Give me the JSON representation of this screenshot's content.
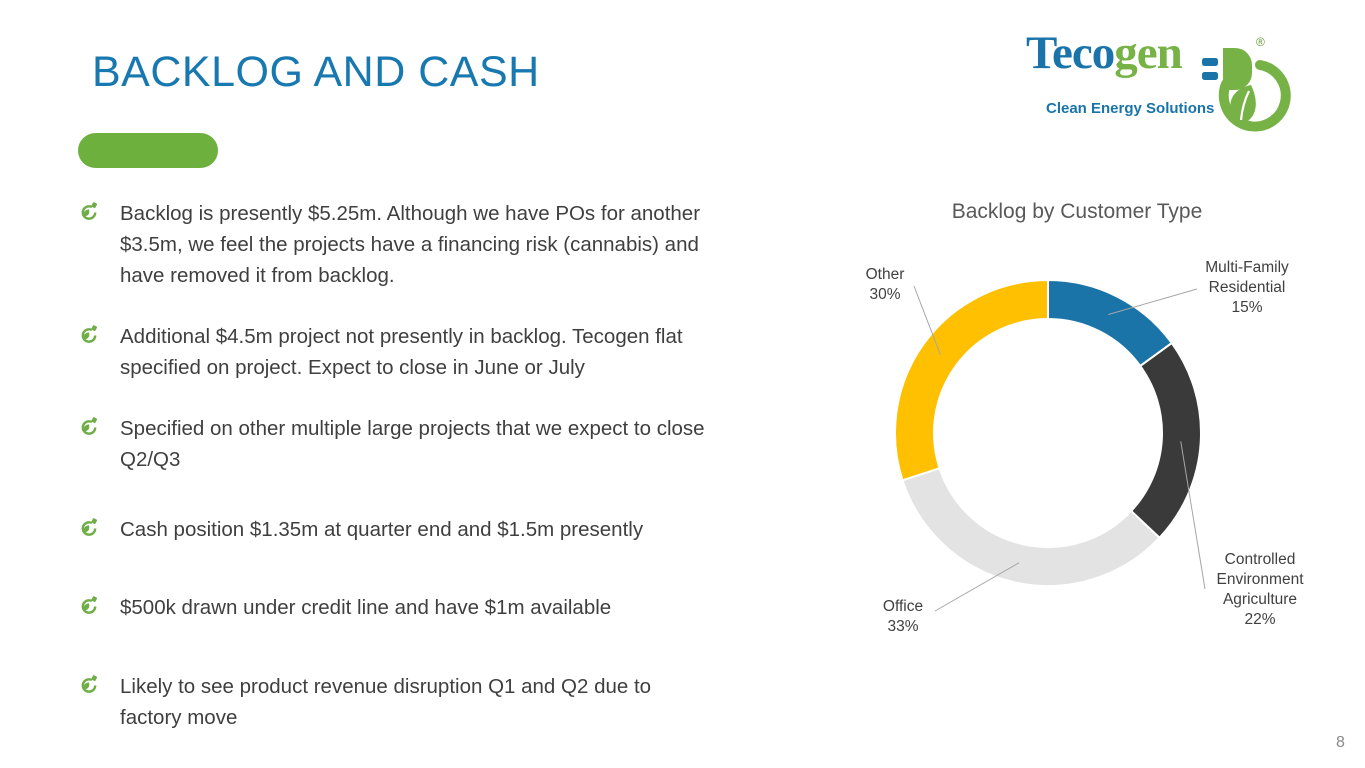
{
  "slide": {
    "title": "BACKLOG AND CASH",
    "page_number": "8"
  },
  "logo": {
    "wordmark_part1": "Teco",
    "wordmark_part2": "gen",
    "tagline": "Clean Energy Solutions"
  },
  "bullets": [
    {
      "lines": [
        "Backlog is presently $5.25m. Although we have POs for another",
        "$3.5m, we feel the projects have a financing risk (cannabis) and",
        "have removed it from backlog."
      ]
    },
    {
      "lines": [
        "Additional $4.5m project not presently in backlog. Tecogen flat",
        "specified on project. Expect to close in June or July",
        ""
      ]
    },
    {
      "lines": [
        "Specified on other multiple large projects that we expect to close",
        "Q2/Q3",
        ""
      ]
    },
    {
      "lines": [
        "Cash position $1.35m at quarter end and $1.5m presently",
        "",
        ""
      ]
    },
    {
      "lines": [
        "$500k drawn under credit line and have $1m available",
        "",
        ""
      ]
    },
    {
      "lines": [
        "Likely to see product revenue disruption Q1 and Q2 due to",
        "factory move",
        ""
      ]
    }
  ],
  "chart_data": {
    "type": "pie",
    "subtype": "donut",
    "title": "Backlog by Customer Type",
    "start_angle": 0,
    "direction": "clockwise",
    "hole_ratio": 0.75,
    "label_color": "#404040",
    "leader_line_color": "#a6a6a6",
    "segments": [
      {
        "label": "Multi-Family Residential",
        "label_lines": [
          "Multi-Family",
          "Residential"
        ],
        "value": 15,
        "color": "#1b74a8"
      },
      {
        "label": "Controlled Environment Agriculture",
        "label_lines": [
          "Controlled",
          "Environment",
          "Agriculture"
        ],
        "value": 22,
        "color": "#3a3a3a"
      },
      {
        "label": "Office",
        "label_lines": [
          "Office"
        ],
        "value": 33,
        "color": "#e3e3e3"
      },
      {
        "label": "Other",
        "label_lines": [
          "Other"
        ],
        "value": 30,
        "color": "#fec001"
      }
    ]
  }
}
